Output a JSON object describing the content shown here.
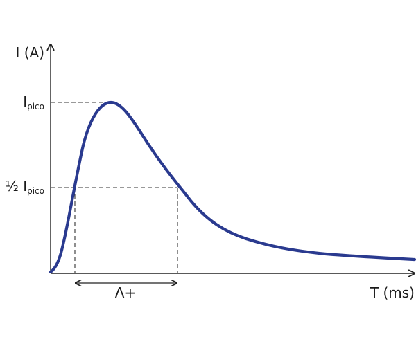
{
  "diagram": {
    "y_axis_label": "I (A)",
    "x_axis_label": "T (ms)",
    "peak_label": {
      "main": "I",
      "sub": "pico"
    },
    "half_peak_label": {
      "prefix": "½ ",
      "main": "I",
      "sub": "pico"
    },
    "span_label": "Λ+",
    "curve_color": "#2a3a8f",
    "axis_color": "#222222"
  }
}
